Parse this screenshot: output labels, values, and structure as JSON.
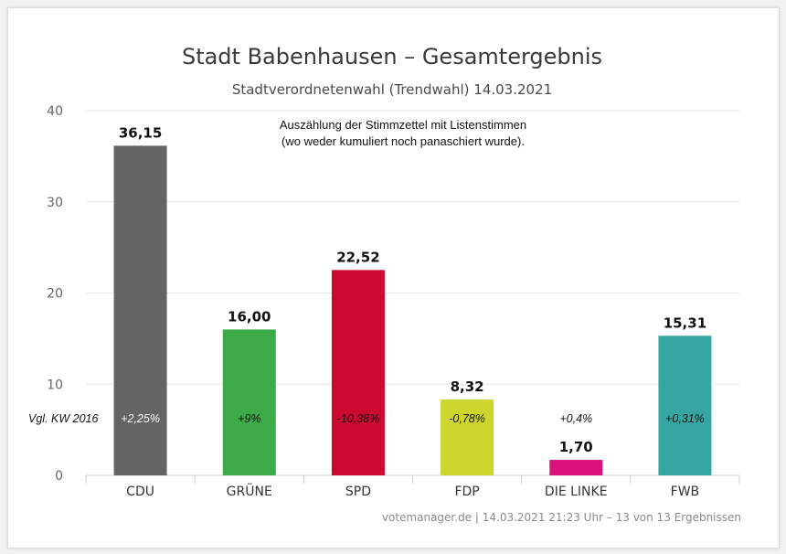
{
  "chart_data": {
    "type": "bar",
    "title": "Stadt Babenhausen – Gesamtergebnis",
    "subtitle": "Stadtverordnetenwahl (Trendwahl) 14.03.2021",
    "note_lines": [
      "Auszählung der Stimmzettel mit Listenstimmen",
      "(wo weder kumuliert noch panaschiert wurde)."
    ],
    "categories": [
      "CDU",
      "GRÜNE",
      "SPD",
      "FDP",
      "DIE LINKE",
      "FWB"
    ],
    "values": [
      36.15,
      16.0,
      22.52,
      8.32,
      1.7,
      15.31
    ],
    "value_labels": [
      "36,15",
      "16,00",
      "22,52",
      "8,32",
      "1,70",
      "15,31"
    ],
    "colors": [
      "#646464",
      "#3daa48",
      "#cc0a2f",
      "#cdd62d",
      "#d9137b",
      "#37a6a3"
    ],
    "comparison_label": "Vgl. KW 2016",
    "changes": [
      "+2,25%",
      "+9%",
      "-10,38%",
      "-0,78%",
      "+0,4%",
      "+0,31%"
    ],
    "change_text_colors": [
      "#ffffff",
      "#111111",
      "#111111",
      "#111111",
      "#111111",
      "#111111"
    ],
    "ylim": [
      0,
      40
    ],
    "yticks": [
      0,
      10,
      20,
      30,
      40
    ],
    "grid": true,
    "xlabel": "",
    "ylabel": "",
    "credit": "votemanager.de | 14.03.2021 21:23 Uhr – 13 von 13 Ergebnissen"
  }
}
